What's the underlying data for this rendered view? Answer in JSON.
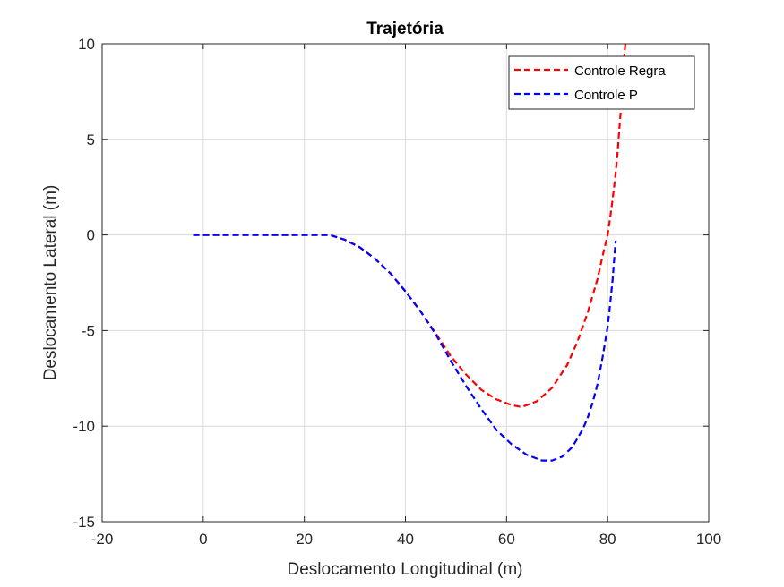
{
  "chart_data": {
    "type": "line",
    "title": "Trajetória",
    "xlabel": "Deslocamento Longitudinal (m)",
    "ylabel": "Deslocamento Lateral (m)",
    "xlim": [
      -20,
      100
    ],
    "ylim": [
      -15,
      10
    ],
    "xticks": [
      -20,
      0,
      20,
      40,
      60,
      80,
      100
    ],
    "yticks": [
      -15,
      -10,
      -5,
      0,
      5,
      10
    ],
    "xtick_labels": [
      "-20",
      "0",
      "20",
      "40",
      "60",
      "80",
      "100"
    ],
    "ytick_labels": [
      "-15",
      "-10",
      "-5",
      "0",
      "5",
      "10"
    ],
    "grid": true,
    "legend_position": "top-right",
    "series": [
      {
        "name": "Controle Regra",
        "color": "#ff0000",
        "dash": "dashed",
        "x": [
          -2,
          5,
          10,
          15,
          20,
          25,
          28,
          31,
          34,
          37,
          40,
          43,
          46,
          49,
          52,
          55,
          58,
          61,
          63,
          66,
          69,
          72,
          74,
          76,
          78,
          79,
          80,
          80.5,
          81,
          81.5,
          82,
          82.3,
          82.6,
          82.8,
          83,
          83.2,
          83.4,
          83.5
        ],
        "y": [
          0,
          0,
          0,
          0,
          0,
          0,
          -0.25,
          -0.65,
          -1.25,
          -2.0,
          -2.95,
          -4.0,
          -5.15,
          -6.35,
          -7.3,
          -8.1,
          -8.6,
          -8.9,
          -9.0,
          -8.7,
          -8.0,
          -6.8,
          -5.6,
          -4.1,
          -2.3,
          -1.1,
          0,
          0.9,
          1.9,
          3.0,
          4.4,
          5.5,
          6.5,
          7.4,
          8.2,
          9.0,
          9.7,
          10
        ]
      },
      {
        "name": "Controle P",
        "color": "#0000ff",
        "dash": "dashed",
        "x": [
          -2,
          5,
          10,
          15,
          20,
          25,
          28,
          31,
          34,
          37,
          40,
          43,
          46,
          49,
          52,
          55,
          58,
          61,
          64,
          67,
          69,
          71,
          73,
          75,
          76,
          77,
          78,
          79,
          80,
          80.5,
          81,
          81.2,
          81.4,
          81.6
        ],
        "y": [
          0,
          0,
          0,
          0,
          0,
          0,
          -0.25,
          -0.65,
          -1.25,
          -2.0,
          -2.95,
          -4.0,
          -5.2,
          -6.6,
          -7.9,
          -9.1,
          -10.2,
          -10.95,
          -11.5,
          -11.8,
          -11.8,
          -11.6,
          -11.1,
          -10.2,
          -9.6,
          -8.8,
          -7.8,
          -6.4,
          -4.8,
          -3.6,
          -2.3,
          -1.6,
          -0.9,
          -0.3
        ]
      }
    ]
  }
}
